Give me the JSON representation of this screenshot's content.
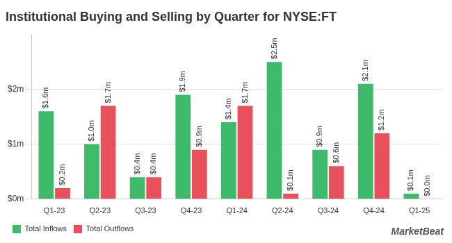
{
  "chart_data": {
    "type": "bar",
    "title": "Institutional Buying and Selling by Quarter for NYSE:FT",
    "categories": [
      "Q1-23",
      "Q2-23",
      "Q3-23",
      "Q4-23",
      "Q1-24",
      "Q2-24",
      "Q3-24",
      "Q4-24",
      "Q1-25"
    ],
    "series": [
      {
        "name": "Total Inflows",
        "color": "#3dbb6b",
        "values": [
          1.6,
          1.0,
          0.4,
          1.9,
          1.4,
          2.5,
          0.9,
          2.1,
          0.1
        ],
        "value_labels": [
          "$1.6m",
          "$1.0m",
          "$0.4m",
          "$1.9m",
          "$1.4m",
          "$2.5m",
          "$0.9m",
          "$2.1m",
          "$0.1m"
        ]
      },
      {
        "name": "Total Outflows",
        "color": "#e8505b",
        "values": [
          0.2,
          1.7,
          0.4,
          0.9,
          1.7,
          0.1,
          0.6,
          1.2,
          0.0
        ],
        "value_labels": [
          "$0.2m",
          "$1.7m",
          "$0.4m",
          "$0.9m",
          "$1.7m",
          "$0.1m",
          "$0.6m",
          "$1.2m",
          "$0.0m"
        ]
      }
    ],
    "ylim": [
      0,
      3
    ],
    "yticks": [
      {
        "value": 0,
        "label": "$0m"
      },
      {
        "value": 1,
        "label": "$1m"
      },
      {
        "value": 2,
        "label": "$2m"
      }
    ],
    "grid": true,
    "legend": "bottom-left",
    "data_labels": true,
    "annotations": [
      "MarketBeat"
    ]
  }
}
